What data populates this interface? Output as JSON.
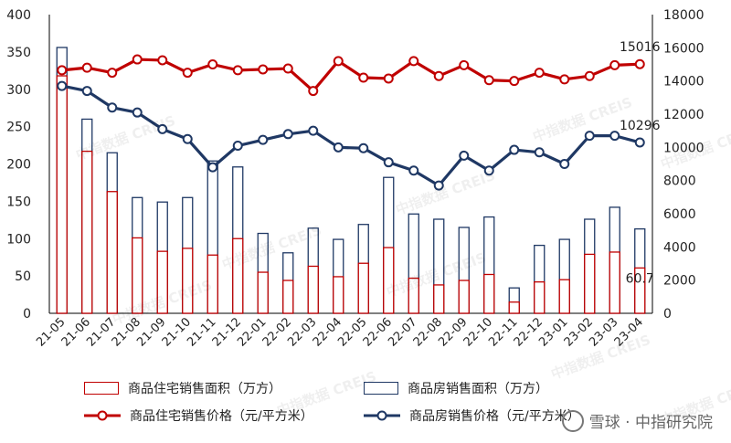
{
  "chart_data": {
    "type": "bar+line",
    "categories": [
      "21-05",
      "21-06",
      "21-07",
      "21-08",
      "21-09",
      "21-10",
      "21-11",
      "21-12",
      "22-01",
      "22-02",
      "22-03",
      "22-04",
      "22-05",
      "22-06",
      "22-07",
      "22-08",
      "22-09",
      "22-10",
      "22-11",
      "22-12",
      "23-01",
      "23-02",
      "23-03",
      "23-04"
    ],
    "left_axis": {
      "min": 0,
      "max": 400,
      "ticks": [
        "0",
        "50",
        "100",
        "150",
        "200",
        "250",
        "300",
        "350",
        "400"
      ]
    },
    "right_axis": {
      "min": 0,
      "max": 18000,
      "ticks": [
        "0",
        "2000",
        "4000",
        "6000",
        "8000",
        "10000",
        "12000",
        "14000",
        "16000",
        "18000"
      ]
    },
    "series": [
      {
        "name": "商品住宅销售面积（万方）",
        "kind": "bar",
        "axis": "left",
        "color": "#c00000",
        "values": [
          318,
          217,
          163,
          101,
          83,
          87,
          78,
          100,
          55,
          44,
          63,
          49,
          67,
          88,
          47,
          38,
          44,
          52,
          15,
          42,
          45,
          79,
          82,
          60.7
        ]
      },
      {
        "name": "商品房销售面积（万方）",
        "kind": "bar",
        "axis": "left",
        "color": "#1f3864",
        "values": [
          356,
          260,
          215,
          155,
          149,
          155,
          204,
          196,
          107,
          81,
          114,
          99,
          119,
          182,
          133,
          126,
          115,
          129,
          34,
          91,
          99,
          126,
          142,
          113
        ]
      },
      {
        "name": "商品住宅销售价格（元/平方米）",
        "kind": "line",
        "axis": "right",
        "color": "#c00000",
        "values": [
          14650,
          14800,
          14500,
          15300,
          15250,
          14500,
          15000,
          14650,
          14700,
          14750,
          13400,
          15200,
          14200,
          14150,
          15200,
          14300,
          14950,
          14050,
          14000,
          14500,
          14100,
          14300,
          14950,
          15016
        ]
      },
      {
        "name": "商品房销售价格（元/平方米）",
        "kind": "line",
        "axis": "right",
        "color": "#1f3864",
        "values": [
          13700,
          13400,
          12400,
          12100,
          11100,
          10500,
          8800,
          10100,
          10450,
          10800,
          11000,
          10000,
          9950,
          9100,
          8600,
          7700,
          9500,
          8600,
          9850,
          9700,
          9000,
          10700,
          10700,
          10296
        ]
      }
    ],
    "annotations": [
      {
        "series": 2,
        "index": 23,
        "text": "15016"
      },
      {
        "series": 3,
        "index": 23,
        "text": "10296"
      },
      {
        "series": 0,
        "index": 23,
        "text": "60.7"
      }
    ]
  },
  "legend": [
    {
      "label": "商品住宅销售面积（万方）"
    },
    {
      "label": "商品房销售面积（万方）"
    },
    {
      "label": "商品住宅销售价格（元/平方米）"
    },
    {
      "label": "商品房销售价格（元/平方米）"
    }
  ],
  "watermark_text": "中指数据 CREIS",
  "brand": "雪球 · 中指研究院"
}
